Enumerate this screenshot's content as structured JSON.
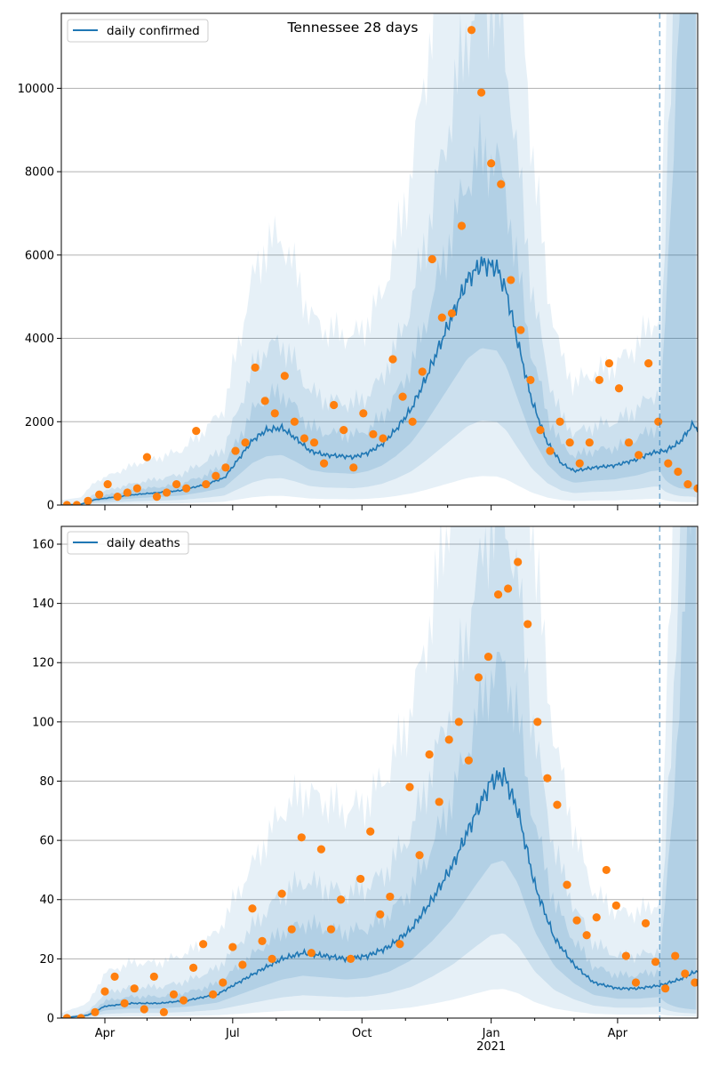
{
  "chart_data": [
    {
      "type": "line",
      "title": "Tennessee 28 days",
      "xlabel": "",
      "ylabel": "",
      "x_range": [
        "2020-03-01",
        "2021-05-28"
      ],
      "ylim": [
        0,
        11800
      ],
      "yticks": [
        0,
        2000,
        4000,
        6000,
        8000,
        10000
      ],
      "ytick_labels": [
        "0",
        "2000",
        "4000",
        "6000",
        "8000",
        "10000"
      ],
      "grid": "horizontal",
      "legend": {
        "position": "top-left",
        "entries": [
          "daily confirmed"
        ]
      },
      "forecast_start": "2021-05-01",
      "series": [
        {
          "name": "daily confirmed",
          "kind": "model_median",
          "color": "#1f77b4",
          "points": [
            [
              "2020-03-01",
              0
            ],
            [
              "2020-03-15",
              20
            ],
            [
              "2020-03-25",
              130
            ],
            [
              "2020-04-10",
              200
            ],
            [
              "2020-04-25",
              260
            ],
            [
              "2020-05-10",
              300
            ],
            [
              "2020-05-25",
              350
            ],
            [
              "2020-06-10",
              480
            ],
            [
              "2020-06-25",
              650
            ],
            [
              "2020-07-05",
              1100
            ],
            [
              "2020-07-15",
              1550
            ],
            [
              "2020-07-25",
              1800
            ],
            [
              "2020-08-05",
              1850
            ],
            [
              "2020-08-15",
              1600
            ],
            [
              "2020-08-25",
              1300
            ],
            [
              "2020-09-05",
              1200
            ],
            [
              "2020-09-15",
              1180
            ],
            [
              "2020-09-25",
              1150
            ],
            [
              "2020-10-05",
              1250
            ],
            [
              "2020-10-15",
              1450
            ],
            [
              "2020-10-25",
              1800
            ],
            [
              "2020-11-05",
              2300
            ],
            [
              "2020-11-15",
              3000
            ],
            [
              "2020-11-25",
              3800
            ],
            [
              "2020-12-05",
              4600
            ],
            [
              "2020-12-15",
              5400
            ],
            [
              "2020-12-25",
              5800
            ],
            [
              "2021-01-05",
              5700
            ],
            [
              "2021-01-12",
              5100
            ],
            [
              "2021-01-20",
              3900
            ],
            [
              "2021-01-30",
              2500
            ],
            [
              "2021-02-10",
              1500
            ],
            [
              "2021-02-20",
              1000
            ],
            [
              "2021-03-01",
              820
            ],
            [
              "2021-03-15",
              900
            ],
            [
              "2021-03-30",
              950
            ],
            [
              "2021-04-15",
              1100
            ],
            [
              "2021-04-25",
              1250
            ],
            [
              "2021-05-05",
              1300
            ],
            [
              "2021-05-15",
              1500
            ],
            [
              "2021-05-25",
              1950
            ],
            [
              "2021-05-28",
              1800
            ]
          ]
        },
        {
          "name": "daily confirmed",
          "kind": "observed",
          "color": "#ff7f0e",
          "points": [
            [
              "2020-03-05",
              0
            ],
            [
              "2020-03-12",
              0
            ],
            [
              "2020-03-20",
              100
            ],
            [
              "2020-03-28",
              250
            ],
            [
              "2020-04-03",
              500
            ],
            [
              "2020-04-10",
              200
            ],
            [
              "2020-04-17",
              300
            ],
            [
              "2020-04-24",
              400
            ],
            [
              "2020-05-01",
              1150
            ],
            [
              "2020-05-08",
              200
            ],
            [
              "2020-05-15",
              300
            ],
            [
              "2020-05-22",
              500
            ],
            [
              "2020-05-29",
              400
            ],
            [
              "2020-06-05",
              1780
            ],
            [
              "2020-06-12",
              500
            ],
            [
              "2020-06-19",
              700
            ],
            [
              "2020-06-26",
              900
            ],
            [
              "2020-07-03",
              1300
            ],
            [
              "2020-07-10",
              1500
            ],
            [
              "2020-07-17",
              3300
            ],
            [
              "2020-07-24",
              2500
            ],
            [
              "2020-07-31",
              2200
            ],
            [
              "2020-08-07",
              3100
            ],
            [
              "2020-08-14",
              2000
            ],
            [
              "2020-08-21",
              1600
            ],
            [
              "2020-08-28",
              1500
            ],
            [
              "2020-09-04",
              1000
            ],
            [
              "2020-09-11",
              2400
            ],
            [
              "2020-09-18",
              1800
            ],
            [
              "2020-09-25",
              900
            ],
            [
              "2020-10-02",
              2200
            ],
            [
              "2020-10-09",
              1700
            ],
            [
              "2020-10-16",
              1600
            ],
            [
              "2020-10-23",
              3500
            ],
            [
              "2020-10-30",
              2600
            ],
            [
              "2020-11-06",
              2000
            ],
            [
              "2020-11-13",
              3200
            ],
            [
              "2020-11-20",
              5900
            ],
            [
              "2020-11-27",
              4500
            ],
            [
              "2020-12-04",
              4600
            ],
            [
              "2020-12-11",
              6700
            ],
            [
              "2020-12-18",
              11400
            ],
            [
              "2020-12-25",
              9900
            ],
            [
              "2021-01-01",
              8200
            ],
            [
              "2021-01-08",
              7700
            ],
            [
              "2021-01-15",
              5400
            ],
            [
              "2021-01-22",
              4200
            ],
            [
              "2021-01-29",
              3000
            ],
            [
              "2021-02-05",
              1800
            ],
            [
              "2021-02-12",
              1300
            ],
            [
              "2021-02-19",
              2000
            ],
            [
              "2021-02-26",
              1500
            ],
            [
              "2021-03-05",
              1000
            ],
            [
              "2021-03-12",
              1500
            ],
            [
              "2021-03-19",
              3000
            ],
            [
              "2021-03-26",
              3400
            ],
            [
              "2021-04-02",
              2800
            ],
            [
              "2021-04-09",
              1500
            ],
            [
              "2021-04-16",
              1200
            ],
            [
              "2021-04-23",
              3400
            ],
            [
              "2021-04-30",
              2000
            ],
            [
              "2021-05-07",
              1000
            ],
            [
              "2021-05-14",
              800
            ],
            [
              "2021-05-21",
              500
            ],
            [
              "2021-05-28",
              400
            ]
          ]
        }
      ]
    },
    {
      "type": "line",
      "title": "",
      "xlabel": "",
      "ylabel": "",
      "x_range": [
        "2020-03-01",
        "2021-05-28"
      ],
      "ylim": [
        0,
        166
      ],
      "yticks": [
        0,
        20,
        40,
        60,
        80,
        100,
        120,
        140,
        160
      ],
      "ytick_labels": [
        "0",
        "20",
        "40",
        "60",
        "80",
        "100",
        "120",
        "140",
        "160"
      ],
      "xtick_labels": [
        "Apr",
        "Jul",
        "Oct",
        "Jan\n2021",
        "Apr"
      ],
      "grid": "horizontal",
      "legend": {
        "position": "top-left",
        "entries": [
          "daily deaths"
        ]
      },
      "forecast_start": "2021-05-01",
      "series": [
        {
          "name": "daily deaths",
          "kind": "model_median",
          "color": "#1f77b4",
          "points": [
            [
              "2020-03-01",
              0
            ],
            [
              "2020-03-20",
              1
            ],
            [
              "2020-04-01",
              4
            ],
            [
              "2020-04-20",
              5
            ],
            [
              "2020-05-10",
              5
            ],
            [
              "2020-05-30",
              6
            ],
            [
              "2020-06-20",
              8
            ],
            [
              "2020-07-05",
              12
            ],
            [
              "2020-07-20",
              16
            ],
            [
              "2020-08-05",
              20
            ],
            [
              "2020-08-20",
              22
            ],
            [
              "2020-09-05",
              21
            ],
            [
              "2020-09-20",
              20
            ],
            [
              "2020-10-05",
              21
            ],
            [
              "2020-10-20",
              24
            ],
            [
              "2020-11-05",
              30
            ],
            [
              "2020-11-20",
              40
            ],
            [
              "2020-12-05",
              52
            ],
            [
              "2020-12-20",
              68
            ],
            [
              "2021-01-01",
              80
            ],
            [
              "2021-01-10",
              82
            ],
            [
              "2021-01-20",
              70
            ],
            [
              "2021-02-01",
              45
            ],
            [
              "2021-02-15",
              27
            ],
            [
              "2021-03-01",
              18
            ],
            [
              "2021-03-15",
              12
            ],
            [
              "2021-04-01",
              10
            ],
            [
              "2021-04-15",
              10
            ],
            [
              "2021-05-01",
              11
            ],
            [
              "2021-05-15",
              13
            ],
            [
              "2021-05-28",
              16
            ]
          ]
        },
        {
          "name": "daily deaths",
          "kind": "observed",
          "color": "#ff7f0e",
          "points": [
            [
              "2020-03-05",
              0
            ],
            [
              "2020-03-15",
              0
            ],
            [
              "2020-03-25",
              2
            ],
            [
              "2020-04-01",
              9
            ],
            [
              "2020-04-08",
              14
            ],
            [
              "2020-04-15",
              5
            ],
            [
              "2020-04-22",
              10
            ],
            [
              "2020-04-29",
              3
            ],
            [
              "2020-05-06",
              14
            ],
            [
              "2020-05-13",
              2
            ],
            [
              "2020-05-20",
              8
            ],
            [
              "2020-05-27",
              6
            ],
            [
              "2020-06-03",
              17
            ],
            [
              "2020-06-10",
              25
            ],
            [
              "2020-06-17",
              8
            ],
            [
              "2020-06-24",
              12
            ],
            [
              "2020-07-01",
              24
            ],
            [
              "2020-07-08",
              18
            ],
            [
              "2020-07-15",
              37
            ],
            [
              "2020-07-22",
              26
            ],
            [
              "2020-07-29",
              20
            ],
            [
              "2020-08-05",
              42
            ],
            [
              "2020-08-12",
              30
            ],
            [
              "2020-08-19",
              61
            ],
            [
              "2020-08-26",
              22
            ],
            [
              "2020-09-02",
              57
            ],
            [
              "2020-09-09",
              30
            ],
            [
              "2020-09-16",
              40
            ],
            [
              "2020-09-23",
              20
            ],
            [
              "2020-09-30",
              47
            ],
            [
              "2020-10-07",
              63
            ],
            [
              "2020-10-14",
              35
            ],
            [
              "2020-10-21",
              41
            ],
            [
              "2020-10-28",
              25
            ],
            [
              "2020-11-04",
              78
            ],
            [
              "2020-11-11",
              55
            ],
            [
              "2020-11-18",
              89
            ],
            [
              "2020-11-25",
              73
            ],
            [
              "2020-12-02",
              94
            ],
            [
              "2020-12-09",
              100
            ],
            [
              "2020-12-16",
              87
            ],
            [
              "2020-12-23",
              115
            ],
            [
              "2020-12-30",
              122
            ],
            [
              "2021-01-06",
              143
            ],
            [
              "2021-01-13",
              145
            ],
            [
              "2021-01-20",
              154
            ],
            [
              "2021-01-27",
              133
            ],
            [
              "2021-02-03",
              100
            ],
            [
              "2021-02-10",
              81
            ],
            [
              "2021-02-17",
              72
            ],
            [
              "2021-02-24",
              45
            ],
            [
              "2021-03-03",
              33
            ],
            [
              "2021-03-10",
              28
            ],
            [
              "2021-03-17",
              34
            ],
            [
              "2021-03-24",
              50
            ],
            [
              "2021-03-31",
              38
            ],
            [
              "2021-04-07",
              21
            ],
            [
              "2021-04-14",
              12
            ],
            [
              "2021-04-21",
              32
            ],
            [
              "2021-04-28",
              19
            ],
            [
              "2021-05-05",
              10
            ],
            [
              "2021-05-12",
              21
            ],
            [
              "2021-05-19",
              15
            ],
            [
              "2021-05-26",
              12
            ]
          ]
        }
      ]
    }
  ]
}
